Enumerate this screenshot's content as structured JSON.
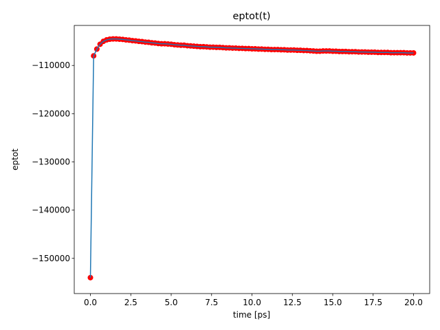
{
  "chart_data": {
    "type": "line",
    "title": "eptot(t)",
    "x_label": "time [ps]",
    "y_label": "eptot",
    "color": "#1f77b4",
    "marker_color": "#ff0000",
    "x": [
      0,
      0.2,
      0.4,
      0.6,
      0.8,
      1.0,
      1.2,
      1.4,
      1.6,
      1.8,
      2.0,
      2.2,
      2.4,
      2.6,
      2.8,
      3.0,
      3.2,
      3.4,
      3.6,
      3.8,
      4.0,
      4.2,
      4.4,
      4.6,
      4.8,
      5.0,
      5.2,
      5.4,
      5.6,
      5.8,
      6.0,
      6.2,
      6.4,
      6.6,
      6.8,
      7.0,
      7.2,
      7.4,
      7.6,
      7.8,
      8.0,
      8.2,
      8.4,
      8.6,
      8.8,
      9.0,
      9.2,
      9.4,
      9.6,
      9.8,
      10.0,
      10.2,
      10.4,
      10.6,
      10.8,
      11.0,
      11.2,
      11.4,
      11.6,
      11.8,
      12.0,
      12.2,
      12.4,
      12.6,
      12.8,
      13.0,
      13.2,
      13.4,
      13.6,
      13.8,
      14.0,
      14.2,
      14.4,
      14.6,
      14.8,
      15.0,
      15.2,
      15.4,
      15.6,
      15.8,
      16.0,
      16.2,
      16.4,
      16.6,
      16.8,
      17.0,
      17.2,
      17.4,
      17.6,
      17.8,
      18.0,
      18.2,
      18.4,
      18.6,
      18.8,
      19.0,
      19.2,
      19.4,
      19.6,
      19.8,
      20.0
    ],
    "values": [
      -154000,
      -108000,
      -106600,
      -105600,
      -105000,
      -104700,
      -104550,
      -104500,
      -104500,
      -104550,
      -104600,
      -104700,
      -104750,
      -104850,
      -104900,
      -105000,
      -105050,
      -105150,
      -105200,
      -105300,
      -105350,
      -105450,
      -105500,
      -105500,
      -105550,
      -105600,
      -105700,
      -105750,
      -105800,
      -105800,
      -105900,
      -105950,
      -106000,
      -106050,
      -106100,
      -106100,
      -106150,
      -106200,
      -106200,
      -106250,
      -106250,
      -106300,
      -106350,
      -106350,
      -106400,
      -106400,
      -106450,
      -106450,
      -106500,
      -106500,
      -106550,
      -106550,
      -106600,
      -106600,
      -106650,
      -106650,
      -106700,
      -106700,
      -106700,
      -106750,
      -106750,
      -106800,
      -106800,
      -106800,
      -106850,
      -106850,
      -106900,
      -106900,
      -106950,
      -107000,
      -107050,
      -107050,
      -107000,
      -107000,
      -107000,
      -107050,
      -107050,
      -107100,
      -107100,
      -107100,
      -107150,
      -107150,
      -107150,
      -107200,
      -107200,
      -107200,
      -107250,
      -107250,
      -107250,
      -107300,
      -107300,
      -107300,
      -107300,
      -107350,
      -107350,
      -107350,
      -107350,
      -107350,
      -107400,
      -107400,
      -107400
    ],
    "xlim": [
      -1,
      21
    ],
    "xticks": [
      {
        "value": 0,
        "label": "0.0"
      },
      2.5,
      {
        "value": 5,
        "label": "5.0"
      },
      7.5,
      {
        "value": 10,
        "label": "10.0"
      },
      12.5,
      {
        "value": 15,
        "label": "15.0"
      },
      17.5,
      {
        "value": 20,
        "label": "20.0"
      }
    ],
    "ylim": [
      -157300,
      -101700
    ],
    "yticks": [
      {
        "value": -150000,
        "label": "−150000"
      },
      {
        "value": -140000,
        "label": "−140000"
      },
      {
        "value": -130000,
        "label": "−130000"
      },
      {
        "value": -120000,
        "label": "−120000"
      },
      {
        "value": -110000,
        "label": "−110000"
      }
    ]
  }
}
